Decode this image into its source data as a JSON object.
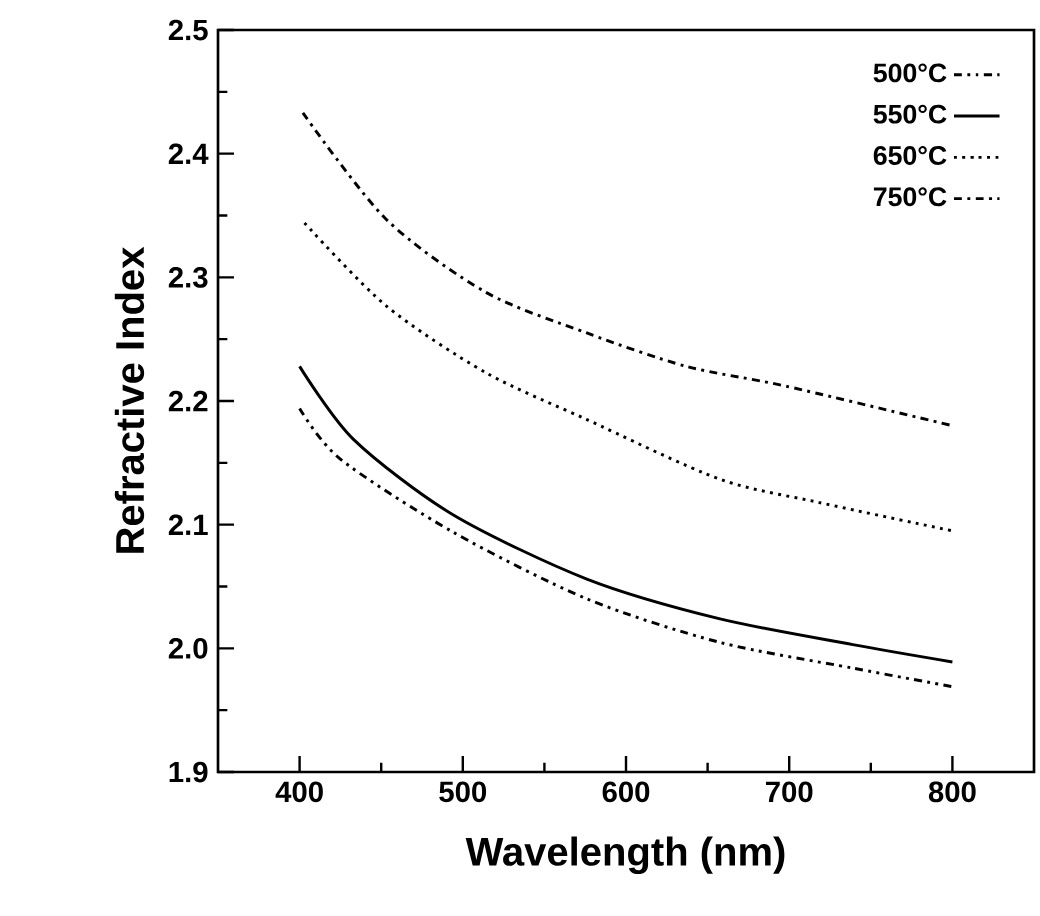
{
  "chart_data": {
    "type": "line",
    "xlabel": "Wavelength (nm)",
    "ylabel": "Refractive Index",
    "xlim": [
      350,
      850
    ],
    "ylim": [
      1.9,
      2.5
    ],
    "xticks": [
      400,
      500,
      600,
      700,
      800
    ],
    "yticks": [
      1.9,
      {
        "value": 2.0,
        "label": "2.0"
      },
      2.1,
      2.2,
      2.3,
      2.4,
      2.5
    ],
    "legend": "top right",
    "grid": false,
    "marker": "none",
    "series": [
      {
        "name": "500°C",
        "color": "#000000",
        "line_style": "dashdotdot",
        "x": [
          400,
          425,
          494,
          576,
          657,
          739,
          800
        ],
        "values": [
          2.194,
          2.153,
          2.094,
          2.04,
          2.005,
          1.984,
          1.969
        ]
      },
      {
        "name": "550°C",
        "color": "#000000",
        "line_style": "solid",
        "x": [
          400,
          433,
          494,
          576,
          657,
          739,
          800
        ],
        "values": [
          2.228,
          2.169,
          2.108,
          2.056,
          2.024,
          2.003,
          1.989
        ]
      },
      {
        "name": "650°C",
        "color": "#000000",
        "line_style": "dotted",
        "x": [
          403,
          453,
          514,
          576,
          657,
          718,
          800
        ],
        "values": [
          2.344,
          2.277,
          2.223,
          2.185,
          2.137,
          2.118,
          2.095
        ]
      },
      {
        "name": "750°C",
        "color": "#000000",
        "line_style": "dashdot",
        "x": [
          402,
          453,
          514,
          576,
          637,
          698,
          800
        ],
        "values": [
          2.433,
          2.347,
          2.288,
          2.255,
          2.228,
          2.212,
          2.18
        ]
      }
    ]
  }
}
